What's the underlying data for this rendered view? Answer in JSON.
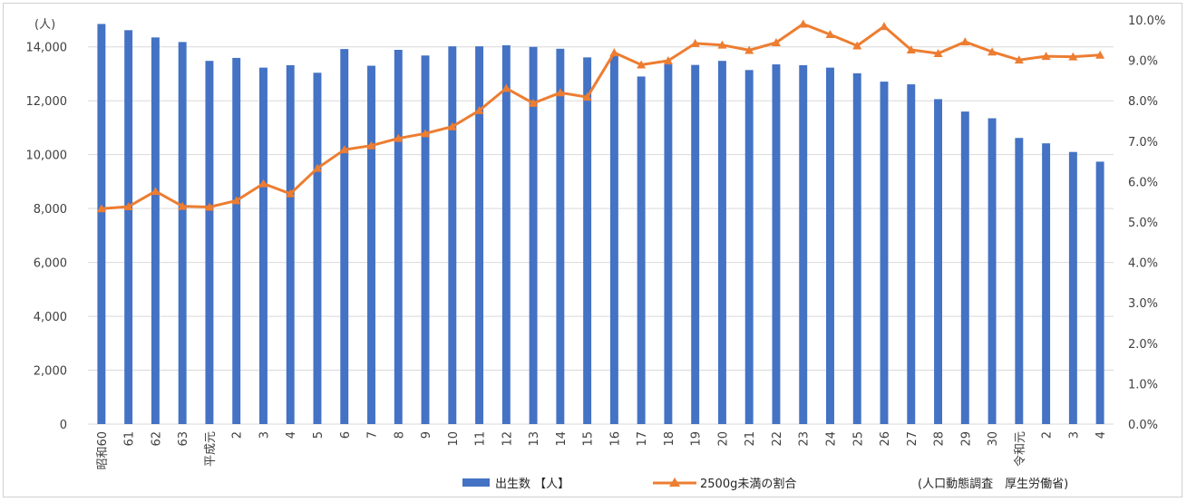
{
  "chart_data": {
    "type": "bar",
    "categories": [
      "昭和60",
      "61",
      "62",
      "63",
      "平成元",
      "2",
      "3",
      "4",
      "5",
      "6",
      "7",
      "8",
      "9",
      "10",
      "11",
      "12",
      "13",
      "14",
      "15",
      "16",
      "17",
      "18",
      "19",
      "20",
      "21",
      "22",
      "23",
      "24",
      "25",
      "26",
      "27",
      "28",
      "29",
      "30",
      "令和元",
      "2",
      "3",
      "4"
    ],
    "series": [
      {
        "name": "出生数 【人】",
        "type": "bar",
        "axis": "left",
        "color": "#4472C4",
        "values": [
          14850,
          14620,
          14350,
          14180,
          13480,
          13590,
          13230,
          13320,
          13040,
          13920,
          13300,
          13890,
          13680,
          14020,
          14020,
          14060,
          14000,
          13930,
          13610,
          13700,
          12900,
          13350,
          13330,
          13480,
          13140,
          13350,
          13320,
          13230,
          13020,
          12710,
          12610,
          12060,
          11600,
          11350,
          10620,
          10420,
          10100,
          9740
        ]
      },
      {
        "name": "2500g未満の割合",
        "type": "line",
        "axis": "right",
        "color": "#ED7D31",
        "marker": "triangle",
        "values": [
          5.33,
          5.38,
          5.76,
          5.39,
          5.37,
          5.53,
          5.95,
          5.7,
          6.33,
          6.79,
          6.89,
          7.07,
          7.19,
          7.36,
          7.76,
          8.31,
          7.94,
          8.2,
          8.09,
          9.19,
          8.89,
          8.99,
          9.42,
          9.38,
          9.25,
          9.44,
          9.9,
          9.64,
          9.36,
          9.84,
          9.26,
          9.17,
          9.46,
          9.21,
          9.01,
          9.1,
          9.09,
          9.13
        ]
      }
    ],
    "left_axis": {
      "unit_label": "(人)",
      "min": 0,
      "max": 15000,
      "ticks": [
        0,
        2000,
        4000,
        6000,
        8000,
        10000,
        12000,
        14000
      ],
      "tick_labels": [
        "0",
        "2,000",
        "4,000",
        "6,000",
        "8,000",
        "10,000",
        "12,000",
        "14,000"
      ]
    },
    "right_axis": {
      "min": 0,
      "max": 10,
      "ticks": [
        0,
        1,
        2,
        3,
        4,
        5,
        6,
        7,
        8,
        9,
        10
      ],
      "tick_labels": [
        "0.0%",
        "1.0%",
        "2.0%",
        "3.0%",
        "4.0%",
        "5.0%",
        "6.0%",
        "7.0%",
        "8.0%",
        "9.0%",
        "10.0%"
      ]
    },
    "grid": true,
    "legend_position": "bottom",
    "source_note": "(人口動態調査　厚生労働省)"
  }
}
